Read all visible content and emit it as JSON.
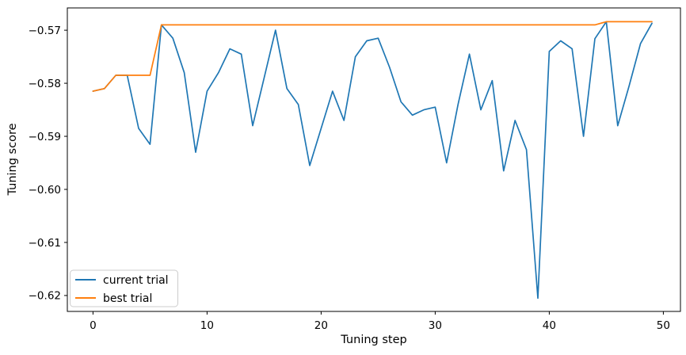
{
  "chart_data": {
    "type": "line",
    "title": "",
    "xlabel": "Tuning step",
    "ylabel": "Tuning score",
    "x": [
      0,
      1,
      2,
      3,
      4,
      5,
      6,
      7,
      8,
      9,
      10,
      11,
      12,
      13,
      14,
      15,
      16,
      17,
      18,
      19,
      20,
      21,
      22,
      23,
      24,
      25,
      26,
      27,
      28,
      29,
      30,
      31,
      32,
      33,
      34,
      35,
      36,
      37,
      38,
      39,
      40,
      41,
      42,
      43,
      44,
      45,
      46,
      47,
      48,
      49
    ],
    "series": [
      {
        "name": "current trial",
        "color": "#1f77b4",
        "values": [
          -0.5815,
          -0.581,
          -0.5785,
          -0.5785,
          -0.5885,
          -0.5915,
          -0.569,
          -0.5715,
          -0.578,
          -0.593,
          -0.5815,
          -0.578,
          -0.5735,
          -0.5745,
          -0.588,
          -0.579,
          -0.57,
          -0.581,
          -0.584,
          -0.5955,
          -0.5885,
          -0.5815,
          -0.587,
          -0.575,
          -0.572,
          -0.5715,
          -0.577,
          -0.5835,
          -0.586,
          -0.585,
          -0.5845,
          -0.595,
          -0.584,
          -0.5745,
          -0.585,
          -0.5795,
          -0.5965,
          -0.587,
          -0.5925,
          -0.6205,
          -0.574,
          -0.572,
          -0.5735,
          -0.59,
          -0.5716,
          -0.5684,
          -0.588,
          -0.5805,
          -0.5725,
          -0.5687
        ],
        "legend_label": "current trial"
      },
      {
        "name": "best trial",
        "color": "#ff7f0e",
        "values": [
          -0.5815,
          -0.581,
          -0.5785,
          -0.5785,
          -0.5785,
          -0.5785,
          -0.569,
          -0.569,
          -0.569,
          -0.569,
          -0.569,
          -0.569,
          -0.569,
          -0.569,
          -0.569,
          -0.569,
          -0.569,
          -0.569,
          -0.569,
          -0.569,
          -0.569,
          -0.569,
          -0.569,
          -0.569,
          -0.569,
          -0.569,
          -0.569,
          -0.569,
          -0.569,
          -0.569,
          -0.569,
          -0.569,
          -0.569,
          -0.569,
          -0.569,
          -0.569,
          -0.569,
          -0.569,
          -0.569,
          -0.569,
          -0.569,
          -0.569,
          -0.569,
          -0.569,
          -0.569,
          -0.5684,
          -0.5684,
          -0.5684,
          -0.5684,
          -0.5684
        ],
        "legend_label": "best trial"
      }
    ],
    "xlim": [
      -2.25,
      51.5
    ],
    "ylim": [
      -0.623,
      -0.5658
    ],
    "xticks": [
      0,
      10,
      20,
      30,
      40,
      50
    ],
    "yticks": [
      -0.57,
      -0.58,
      -0.59,
      -0.6,
      -0.61,
      -0.62
    ],
    "grid": false,
    "legend": {
      "position": "lower left",
      "entries": [
        "current trial",
        "best trial"
      ]
    }
  },
  "colors": {
    "spine": "#000000",
    "background": "#ffffff",
    "legend_border": "#cccccc"
  }
}
